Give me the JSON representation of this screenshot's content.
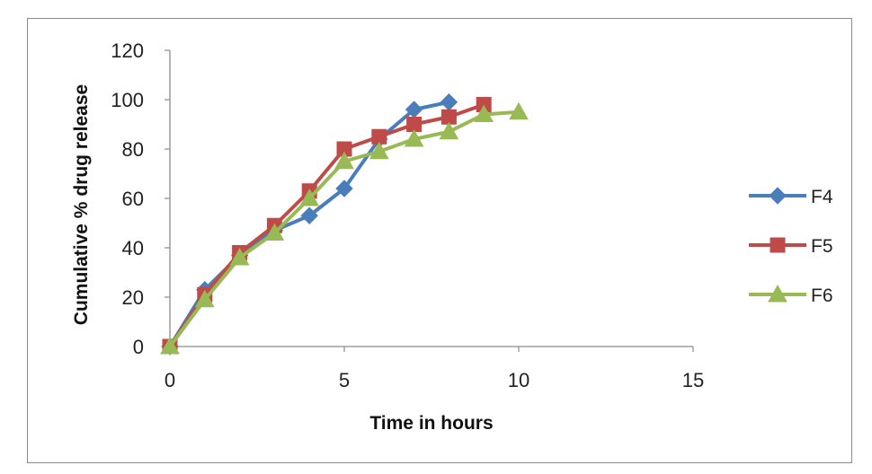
{
  "chart_data": {
    "type": "line",
    "title": "",
    "xlabel": "Time in hours",
    "ylabel": "Cumulative % drug release",
    "xlim": [
      0,
      15
    ],
    "ylim": [
      0,
      120
    ],
    "x_ticks": [
      0,
      5,
      10,
      15
    ],
    "y_ticks": [
      0,
      20,
      40,
      60,
      80,
      100,
      120
    ],
    "grid": false,
    "legend_position": "right",
    "series": [
      {
        "name": "F4",
        "color": "#4a7ebb",
        "marker": "diamond",
        "x": [
          0,
          1,
          2,
          3,
          4,
          5,
          6,
          7,
          8
        ],
        "y": [
          0,
          23,
          37,
          47,
          53,
          64,
          84,
          96,
          99
        ]
      },
      {
        "name": "F5",
        "color": "#be4b48",
        "marker": "square",
        "x": [
          0,
          1,
          2,
          3,
          4,
          5,
          6,
          7,
          8,
          9
        ],
        "y": [
          0,
          21,
          38,
          49,
          63,
          80,
          85,
          90,
          93,
          98
        ]
      },
      {
        "name": "F6",
        "color": "#98b954",
        "marker": "triangle",
        "x": [
          0,
          1,
          2,
          3,
          4,
          5,
          6,
          7,
          8,
          9,
          10
        ],
        "y": [
          0,
          19,
          36,
          46,
          60,
          75,
          79,
          84,
          87,
          94,
          95
        ]
      }
    ]
  }
}
